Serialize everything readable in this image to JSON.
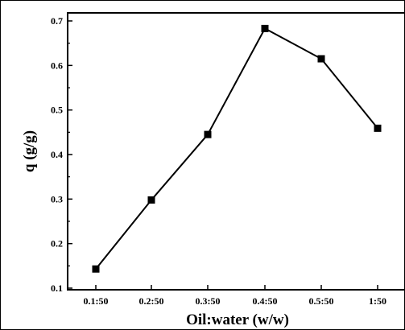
{
  "chart_data": {
    "type": "line",
    "categories": [
      "0.1:50",
      "0.2:50",
      "0.3:50",
      "0.4:50",
      "0.5:50",
      "1:50"
    ],
    "series": [
      {
        "values": [
          0.143,
          0.298,
          0.445,
          0.683,
          0.615,
          0.459
        ]
      }
    ],
    "xlabel": "Oil:water (w/w)",
    "ylabel": "q (g/g)",
    "ylim": [
      0.1,
      0.72
    ],
    "yticks": [
      0.1,
      0.2,
      0.3,
      0.4,
      0.5,
      0.6,
      0.7
    ],
    "ytick_labels": [
      "0.1",
      "0.2",
      "0.3",
      "0.4",
      "0.5",
      "0.6",
      "0.7"
    ],
    "grid": false,
    "legend": "none",
    "colors": {
      "line": "#000000",
      "marker": "#000000"
    },
    "marker": "square"
  }
}
